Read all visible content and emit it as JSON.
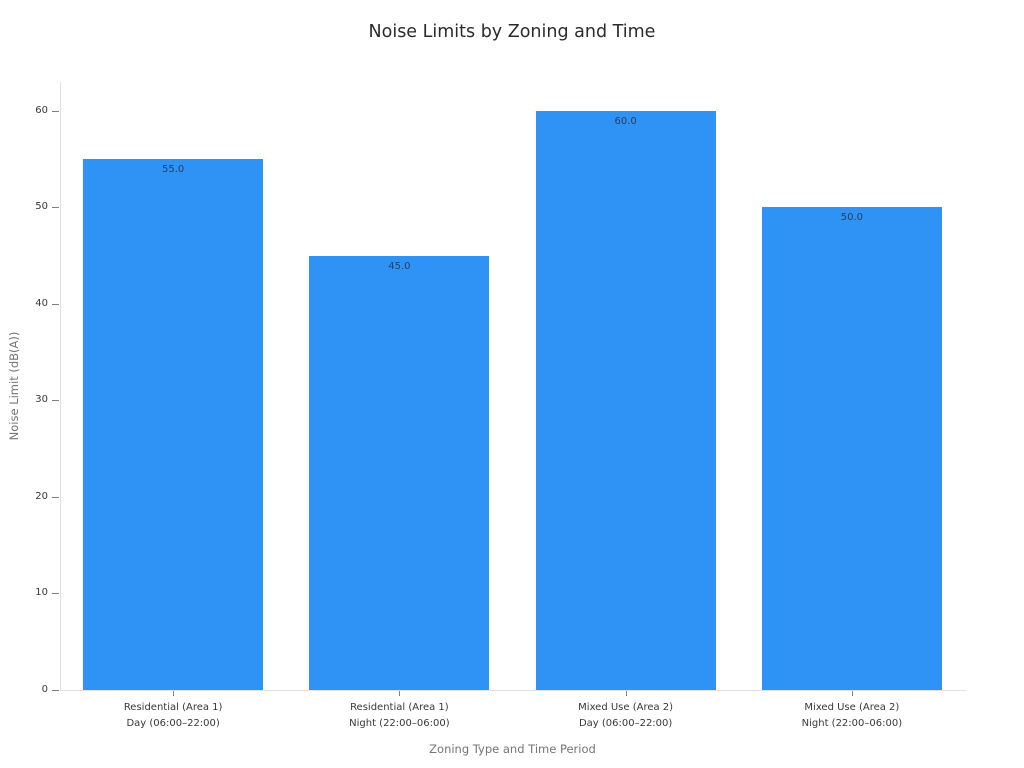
{
  "title": "Noise Limits by Zoning and Time",
  "chart_data": {
    "type": "bar",
    "title": "Noise Limits by Zoning and Time",
    "xlabel": "Zoning Type and Time Period",
    "ylabel": "Noise Limit (dB(A))",
    "categories": [
      {
        "line1": "Residential (Area 1)",
        "line2": "Day (06:00–22:00)"
      },
      {
        "line1": "Residential (Area 1)",
        "line2": "Night (22:00–06:00)"
      },
      {
        "line1": "Mixed Use (Area 2)",
        "line2": "Day (06:00–22:00)"
      },
      {
        "line1": "Mixed Use (Area 2)",
        "line2": "Night (22:00–06:00)"
      }
    ],
    "values": [
      55.0,
      45.0,
      60.0,
      50.0
    ],
    "value_labels": [
      "55.0",
      "45.0",
      "60.0",
      "50.0"
    ],
    "yticks": [
      0,
      10,
      20,
      30,
      40,
      50,
      60
    ],
    "ylim": [
      0,
      63
    ],
    "grid": false,
    "legend_position": "none",
    "bar_color": "#2e93f5",
    "value_label_color": "#2a3f5f",
    "spine_color": "#e1e1e1",
    "tick_color": "#7f7f7f",
    "tick_label_color": "#383838",
    "axis_title_color": "#757575",
    "title_color": "#2b2b2b"
  }
}
